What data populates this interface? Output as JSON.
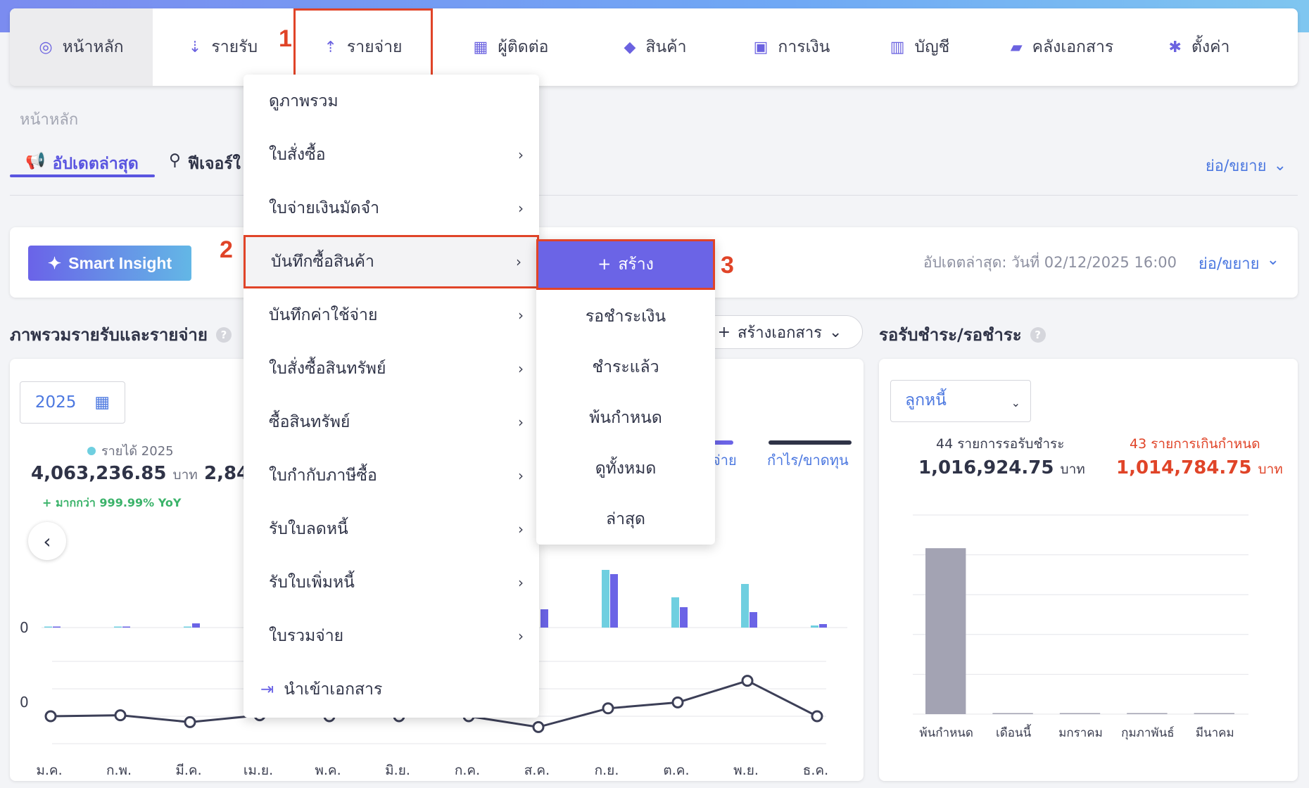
{
  "nav": {
    "items": [
      {
        "label": "หน้าหลัก",
        "icon": "dashboard-icon"
      },
      {
        "label": "รายรับ",
        "icon": "income-icon"
      },
      {
        "label": "รายจ่าย",
        "icon": "expense-icon"
      },
      {
        "label": "ผู้ติดต่อ",
        "icon": "contacts-icon"
      },
      {
        "label": "สินค้า",
        "icon": "product-box-icon"
      },
      {
        "label": "การเงิน",
        "icon": "money-icon"
      },
      {
        "label": "บัญชี",
        "icon": "ledger-icon"
      },
      {
        "label": "คลังเอกสาร",
        "icon": "folder-icon"
      },
      {
        "label": "ตั้งค่า",
        "icon": "gear-icon"
      }
    ]
  },
  "markers": {
    "m1": "1",
    "m2": "2",
    "m3": "3"
  },
  "breadcrumb": "หน้าหลัก",
  "tabs": {
    "updates": "อัปเดตล่าสุด",
    "features": "ฟีเจอร์ใ"
  },
  "toggle_label": "ย่อ/ขยาย",
  "insight": {
    "button": "Smart Insight",
    "updated": "อัปเดตล่าสุด: วันที่ 02/12/2025 16:00",
    "toggle": "ย่อ/ขยาย"
  },
  "overview": {
    "title": "ภาพรวมรายรับและรายจ่าย",
    "create_doc": "สร้างเอกสาร",
    "year": "2025",
    "legend_income": "รายได้ 2025",
    "income_value": "4,063,236.85",
    "currency": "บาท",
    "expense_value_partial": "2,84",
    "yoy": "+ มากกว่า 999.99% YoY",
    "legend_expense_partial": "จ่าย",
    "legend_profit": "กำไร/ขาดทุน"
  },
  "chart_data": {
    "type": "bar",
    "categories": [
      "ม.ค.",
      "ก.พ.",
      "มี.ค.",
      "เม.ย.",
      "พ.ค.",
      "มิ.ย.",
      "ก.ค.",
      "ส.ค.",
      "ก.ย.",
      "ต.ค.",
      "พ.ย.",
      "ธ.ค."
    ],
    "series": [
      {
        "name": "รายได้ 2025",
        "color": "#6fcfe0",
        "values": [
          1,
          1,
          1,
          null,
          null,
          null,
          null,
          null,
          82,
          43,
          62,
          3
        ]
      },
      {
        "name": "รายจ่าย",
        "color": "#6b64e6",
        "values": [
          1,
          1,
          6,
          null,
          null,
          null,
          null,
          26,
          76,
          29,
          22,
          5
        ]
      }
    ],
    "profit_line": [
      0,
      1,
      -6,
      1,
      0,
      0,
      0,
      -11,
      8,
      14,
      36,
      0
    ],
    "y_tick_labels": [
      "0",
      "0"
    ]
  },
  "receivable": {
    "title": "รอรับชำระ/รอชำระ",
    "select": "ลูกหนี้",
    "pending_label": "44 รายการรอรับชำระ",
    "pending_value": "1,016,924.75",
    "overdue_label": "43 รายการเกินกำหนด",
    "overdue_value": "1,014,784.75",
    "currency": "บาท",
    "bar_chart": {
      "type": "bar",
      "categories": [
        "พ้นกำหนด",
        "เดือนนี้",
        "มกราคม",
        "กุมภาพันธ์",
        "มีนาคม"
      ],
      "values": [
        1014784.75,
        0,
        0,
        0,
        0
      ],
      "color": "#a3a3b3"
    }
  },
  "menu": {
    "items": [
      {
        "label": "ดูภาพรวม",
        "arrow": ""
      },
      {
        "label": "ใบสั่งซื้อ",
        "arrow": "›"
      },
      {
        "label": "ใบจ่ายเงินมัดจำ",
        "arrow": "›"
      },
      {
        "label": "บันทึกซื้อสินค้า",
        "arrow": "›"
      },
      {
        "label": "บันทึกค่าใช้จ่าย",
        "arrow": "›"
      },
      {
        "label": "ใบสั่งซื้อสินทรัพย์",
        "arrow": "›"
      },
      {
        "label": "ซื้อสินทรัพย์",
        "arrow": "›"
      },
      {
        "label": "ใบกำกับภาษีซื้อ",
        "arrow": "›"
      },
      {
        "label": "รับใบลดหนี้",
        "arrow": "›"
      },
      {
        "label": "รับใบเพิ่มหนี้",
        "arrow": "›"
      },
      {
        "label": "ใบรวมจ่าย",
        "arrow": "›"
      }
    ],
    "import_label": "นำเข้าเอกสาร"
  },
  "submenu": {
    "create": "สร้าง",
    "items": [
      "รอชำระเงิน",
      "ชำระแล้ว",
      "พ้นกำหนด",
      "ดูทั้งหมด",
      "ล่าสุด"
    ]
  },
  "colors": {
    "accent": "#6b64e6",
    "highlight_border": "#e04428",
    "link": "#4c78e0",
    "income": "#6fcfe0",
    "overdue": "#e04428"
  }
}
